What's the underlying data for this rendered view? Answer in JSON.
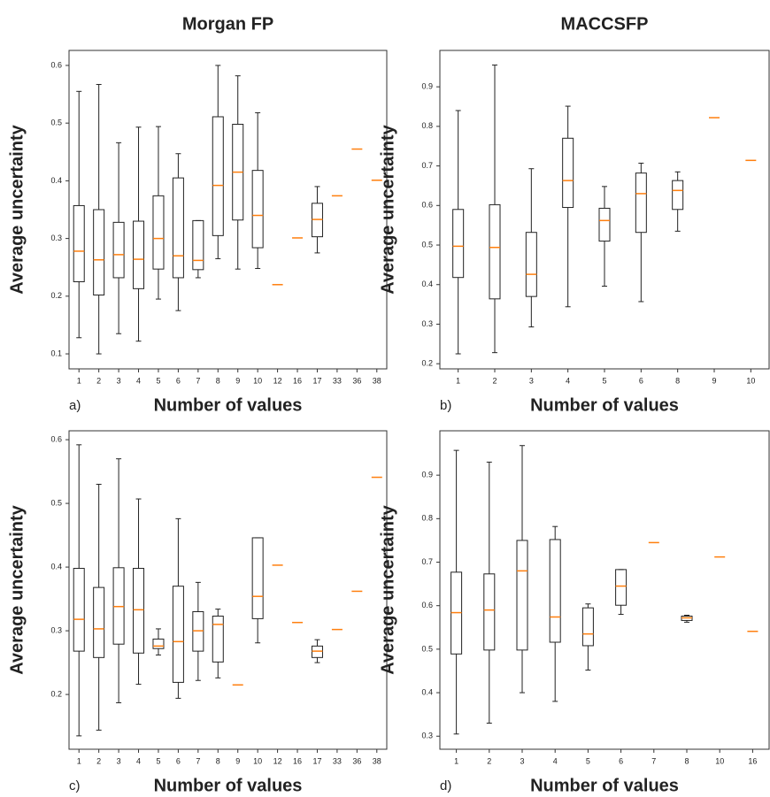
{
  "chart_data": [
    {
      "type": "box",
      "title": "Morgan FP",
      "panel_label": "a)",
      "xlabel": "Number of values",
      "ylabel": "Average uncertainty",
      "categories": [
        "1",
        "2",
        "3",
        "4",
        "5",
        "6",
        "7",
        "8",
        "9",
        "10",
        "12",
        "16",
        "17",
        "33",
        "36",
        "38"
      ],
      "boxes": [
        {
          "whislo": 0.128,
          "q1": 0.225,
          "med": 0.278,
          "q3": 0.357,
          "whishi": 0.555
        },
        {
          "whislo": 0.1,
          "q1": 0.202,
          "med": 0.263,
          "q3": 0.35,
          "whishi": 0.567
        },
        {
          "whislo": 0.135,
          "q1": 0.232,
          "med": 0.272,
          "q3": 0.328,
          "whishi": 0.466
        },
        {
          "whislo": 0.122,
          "q1": 0.213,
          "med": 0.264,
          "q3": 0.33,
          "whishi": 0.493
        },
        {
          "whislo": 0.195,
          "q1": 0.247,
          "med": 0.3,
          "q3": 0.374,
          "whishi": 0.494
        },
        {
          "whislo": 0.175,
          "q1": 0.232,
          "med": 0.27,
          "q3": 0.405,
          "whishi": 0.447
        },
        {
          "whislo": 0.232,
          "q1": 0.246,
          "med": 0.262,
          "q3": 0.331,
          "whishi": 0.331
        },
        {
          "whislo": 0.265,
          "q1": 0.305,
          "med": 0.392,
          "q3": 0.511,
          "whishi": 0.6
        },
        {
          "whislo": 0.247,
          "q1": 0.332,
          "med": 0.415,
          "q3": 0.498,
          "whishi": 0.582
        },
        {
          "whislo": 0.248,
          "q1": 0.284,
          "med": 0.34,
          "q3": 0.418,
          "whishi": 0.518
        },
        {
          "med": 0.22
        },
        {
          "med": 0.301
        },
        {
          "whislo": 0.275,
          "q1": 0.303,
          "med": 0.333,
          "q3": 0.361,
          "whishi": 0.39
        },
        {
          "med": 0.374
        },
        {
          "med": 0.455
        },
        {
          "med": 0.401
        }
      ],
      "ylim": [
        0.074,
        0.626
      ],
      "yticks": [
        0.1,
        0.2,
        0.3,
        0.4,
        0.5,
        0.6
      ],
      "box_color": "#222222",
      "median_color": "#ff7f0e"
    },
    {
      "type": "box",
      "title": "MACCSFP",
      "panel_label": "b)",
      "xlabel": "Number of values",
      "ylabel": "Average uncertainty",
      "categories": [
        "1",
        "2",
        "3",
        "4",
        "5",
        "6",
        "8",
        "9",
        "10"
      ],
      "boxes": [
        {
          "whislo": 0.225,
          "q1": 0.418,
          "med": 0.497,
          "q3": 0.59,
          "whishi": 0.84
        },
        {
          "whislo": 0.228,
          "q1": 0.364,
          "med": 0.494,
          "q3": 0.602,
          "whishi": 0.955
        },
        {
          "whislo": 0.293,
          "q1": 0.37,
          "med": 0.426,
          "q3": 0.532,
          "whishi": 0.693
        },
        {
          "whislo": 0.344,
          "q1": 0.595,
          "med": 0.663,
          "q3": 0.77,
          "whishi": 0.851
        },
        {
          "whislo": 0.396,
          "q1": 0.51,
          "med": 0.562,
          "q3": 0.593,
          "whishi": 0.648
        },
        {
          "whislo": 0.357,
          "q1": 0.532,
          "med": 0.63,
          "q3": 0.682,
          "whishi": 0.707
        },
        {
          "whislo": 0.535,
          "q1": 0.59,
          "med": 0.638,
          "q3": 0.663,
          "whishi": 0.685
        },
        {
          "med": 0.822
        },
        {
          "med": 0.714
        }
      ],
      "ylim": [
        0.187,
        0.992
      ],
      "yticks": [
        0.2,
        0.3,
        0.4,
        0.5,
        0.6,
        0.7,
        0.8,
        0.9
      ],
      "box_color": "#222222",
      "median_color": "#ff7f0e"
    },
    {
      "type": "box",
      "panel_label": "c)",
      "xlabel": "Number of values",
      "ylabel": "Average uncertainty",
      "categories": [
        "1",
        "2",
        "3",
        "4",
        "5",
        "6",
        "7",
        "8",
        "9",
        "10",
        "12",
        "16",
        "17",
        "33",
        "36",
        "38"
      ],
      "boxes": [
        {
          "whislo": 0.135,
          "q1": 0.268,
          "med": 0.318,
          "q3": 0.398,
          "whishi": 0.592
        },
        {
          "whislo": 0.144,
          "q1": 0.258,
          "med": 0.303,
          "q3": 0.368,
          "whishi": 0.53
        },
        {
          "whislo": 0.187,
          "q1": 0.279,
          "med": 0.338,
          "q3": 0.399,
          "whishi": 0.57
        },
        {
          "whislo": 0.216,
          "q1": 0.265,
          "med": 0.333,
          "q3": 0.398,
          "whishi": 0.507
        },
        {
          "whislo": 0.262,
          "q1": 0.272,
          "med": 0.276,
          "q3": 0.287,
          "whishi": 0.303
        },
        {
          "whislo": 0.194,
          "q1": 0.219,
          "med": 0.283,
          "q3": 0.37,
          "whishi": 0.476
        },
        {
          "whislo": 0.222,
          "q1": 0.268,
          "med": 0.3,
          "q3": 0.33,
          "whishi": 0.376
        },
        {
          "whislo": 0.226,
          "q1": 0.251,
          "med": 0.31,
          "q3": 0.323,
          "whishi": 0.334
        },
        {
          "med": 0.215
        },
        {
          "whislo": 0.281,
          "q1": 0.319,
          "med": 0.354,
          "q3": 0.446,
          "whishi": 0.446
        },
        {
          "med": 0.403
        },
        {
          "med": 0.313
        },
        {
          "whislo": 0.25,
          "q1": 0.258,
          "med": 0.268,
          "q3": 0.276,
          "whishi": 0.286
        },
        {
          "med": 0.302
        },
        {
          "med": 0.362
        },
        {
          "med": 0.541
        }
      ],
      "ylim": [
        0.114,
        0.614
      ],
      "yticks": [
        0.2,
        0.3,
        0.4,
        0.5,
        0.6
      ],
      "box_color": "#222222",
      "median_color": "#ff7f0e"
    },
    {
      "type": "box",
      "panel_label": "d)",
      "xlabel": "Number of values",
      "ylabel": "Average uncertainty",
      "categories": [
        "1",
        "2",
        "3",
        "4",
        "5",
        "6",
        "7",
        "8",
        "10",
        "16"
      ],
      "boxes": [
        {
          "whislo": 0.305,
          "q1": 0.489,
          "med": 0.584,
          "q3": 0.677,
          "whishi": 0.957
        },
        {
          "whislo": 0.33,
          "q1": 0.498,
          "med": 0.59,
          "q3": 0.673,
          "whishi": 0.93
        },
        {
          "whislo": 0.4,
          "q1": 0.498,
          "med": 0.68,
          "q3": 0.75,
          "whishi": 0.968
        },
        {
          "whislo": 0.38,
          "q1": 0.516,
          "med": 0.574,
          "q3": 0.752,
          "whishi": 0.782
        },
        {
          "whislo": 0.452,
          "q1": 0.508,
          "med": 0.535,
          "q3": 0.595,
          "whishi": 0.604
        },
        {
          "whislo": 0.58,
          "q1": 0.601,
          "med": 0.645,
          "q3": 0.683,
          "whishi": 0.683
        },
        {
          "med": 0.745
        },
        {
          "whislo": 0.562,
          "q1": 0.566,
          "med": 0.572,
          "q3": 0.576,
          "whishi": 0.578
        },
        {
          "med": 0.712
        },
        {
          "med": 0.541
        }
      ],
      "ylim": [
        0.27,
        1.002
      ],
      "yticks": [
        0.3,
        0.4,
        0.5,
        0.6,
        0.7,
        0.8,
        0.9
      ],
      "box_color": "#222222",
      "median_color": "#ff7f0e"
    }
  ]
}
